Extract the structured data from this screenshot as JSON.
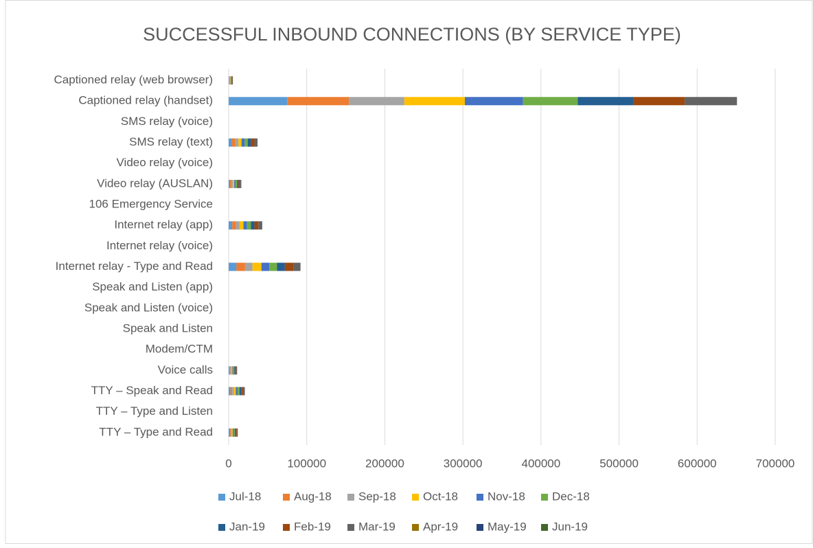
{
  "chart_data": {
    "type": "stacked-bar-horizontal",
    "title": "SUCCESSFUL INBOUND CONNECTIONS (BY SERVICE TYPE)",
    "categories": [
      "Captioned relay (web browser)",
      "Captioned relay (handset)",
      "SMS relay (voice)",
      "SMS relay (text)",
      "Video relay (voice)",
      "Video relay (AUSLAN)",
      "106 Emergency Service",
      "Internet relay (app)",
      "Internet relay (voice)",
      "Internet relay - Type and Read",
      "Speak and Listen (app)",
      "Speak and Listen (voice)",
      "Speak and Listen",
      "Modem/CTM",
      "Voice calls",
      "TTY – Speak and Read",
      "TTY – Type and Listen",
      "TTY – Type and Read"
    ],
    "series": [
      {
        "name": "Jul-18",
        "color": "#5b9bd5",
        "values": [
          600,
          75000,
          0,
          4000,
          0,
          1800,
          0,
          4500,
          0,
          10000,
          0,
          0,
          0,
          0,
          1200,
          2300,
          0,
          1300
        ]
      },
      {
        "name": "Aug-18",
        "color": "#ed7d31",
        "values": [
          600,
          79000,
          0,
          4500,
          0,
          1800,
          0,
          5000,
          0,
          11000,
          0,
          0,
          0,
          0,
          1200,
          2300,
          0,
          1300
        ]
      },
      {
        "name": "Sep-18",
        "color": "#a5a5a5",
        "values": [
          600,
          71000,
          0,
          4000,
          0,
          1800,
          0,
          4500,
          0,
          9500,
          0,
          0,
          0,
          0,
          1200,
          2300,
          0,
          1300
        ]
      },
      {
        "name": "Oct-18",
        "color": "#ffc000",
        "values": [
          600,
          77500,
          0,
          4000,
          0,
          1800,
          0,
          5000,
          0,
          11500,
          0,
          0,
          0,
          0,
          1200,
          2300,
          0,
          1300
        ]
      },
      {
        "name": "Nov-18",
        "color": "#4472c4",
        "values": [
          600,
          74500,
          0,
          4000,
          0,
          1800,
          0,
          4500,
          0,
          10000,
          0,
          0,
          0,
          0,
          1200,
          2300,
          0,
          1300
        ]
      },
      {
        "name": "Dec-18",
        "color": "#70ad47",
        "values": [
          600,
          70000,
          0,
          4000,
          0,
          1800,
          0,
          5000,
          0,
          10000,
          0,
          0,
          0,
          0,
          1200,
          2300,
          0,
          1300
        ]
      },
      {
        "name": "Jan-19",
        "color": "#255e91",
        "values": [
          600,
          71000,
          0,
          4000,
          0,
          1800,
          0,
          4500,
          0,
          10000,
          0,
          0,
          0,
          0,
          1200,
          2300,
          0,
          1300
        ]
      },
      {
        "name": "Feb-19",
        "color": "#9e480e",
        "values": [
          600,
          66000,
          0,
          4500,
          0,
          1800,
          0,
          5000,
          0,
          11000,
          0,
          0,
          0,
          0,
          1200,
          2300,
          0,
          1300
        ]
      },
      {
        "name": "Mar-19",
        "color": "#636363",
        "values": [
          600,
          67000,
          0,
          4000,
          0,
          1800,
          0,
          5000,
          0,
          9000,
          0,
          0,
          0,
          0,
          1200,
          2300,
          0,
          1300
        ]
      },
      {
        "name": "Apr-19",
        "color": "#997300",
        "values": [
          0,
          0,
          0,
          0,
          0,
          0,
          0,
          0,
          0,
          0,
          0,
          0,
          0,
          0,
          0,
          0,
          0,
          0
        ]
      },
      {
        "name": "May-19",
        "color": "#264478",
        "values": [
          0,
          0,
          0,
          0,
          0,
          0,
          0,
          0,
          0,
          0,
          0,
          0,
          0,
          0,
          0,
          0,
          0,
          0
        ]
      },
      {
        "name": "Jun-19",
        "color": "#43682b",
        "values": [
          0,
          0,
          0,
          0,
          0,
          0,
          0,
          0,
          0,
          0,
          0,
          0,
          0,
          0,
          0,
          0,
          0,
          0
        ]
      }
    ],
    "xlim": [
      0,
      700000
    ],
    "xticks": [
      0,
      100000,
      200000,
      300000,
      400000,
      500000,
      600000,
      700000
    ],
    "grid": true
  }
}
